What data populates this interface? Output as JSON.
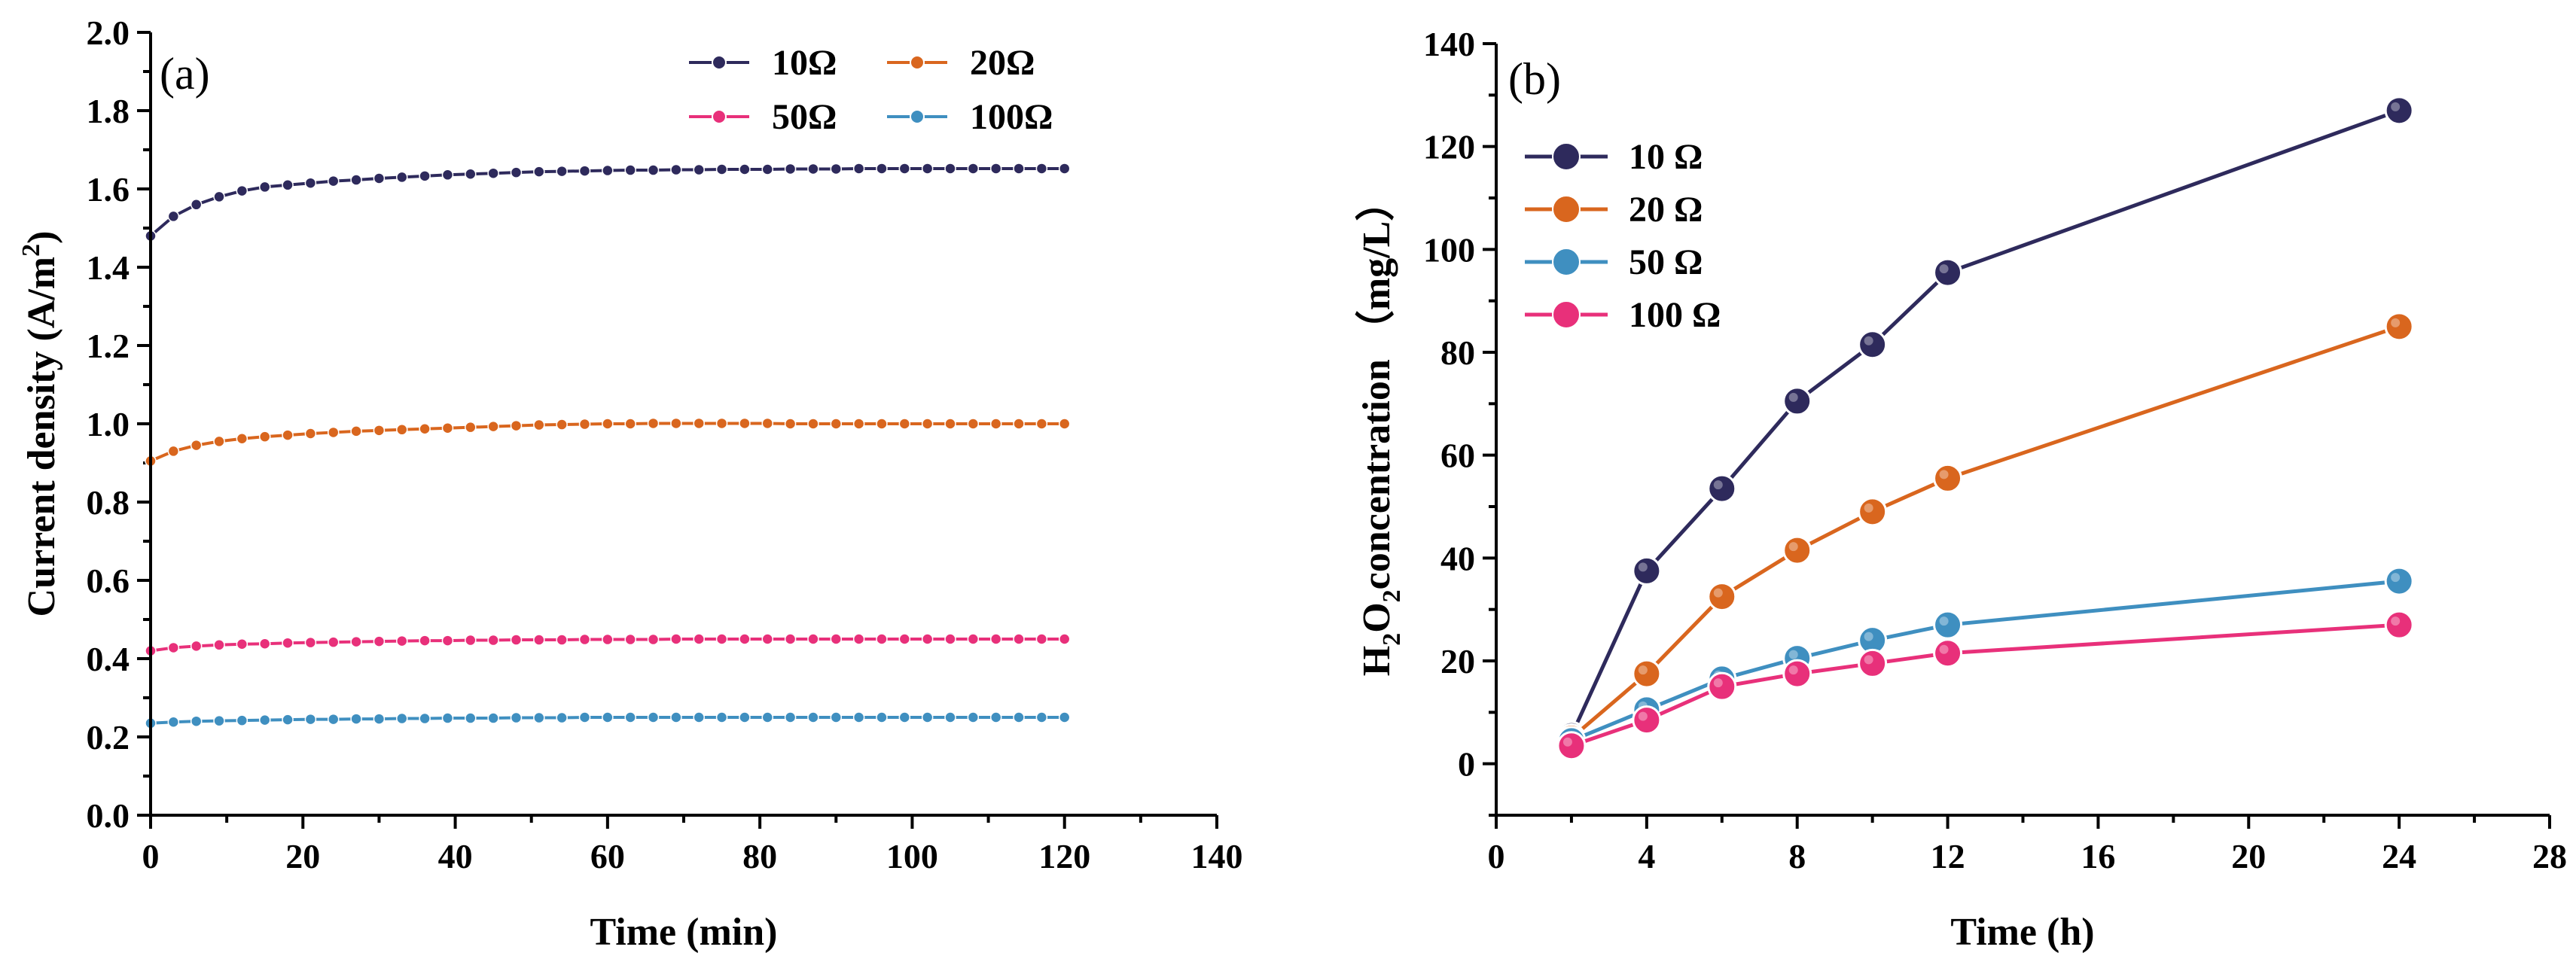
{
  "chart_data": [
    {
      "panel_label": "(a)",
      "type": "line",
      "xlabel": "Time (min)",
      "ylabel_main": "Current density (A/m",
      "ylabel_sup": "2",
      "ylabel_end": ")",
      "xlim": [
        0,
        140
      ],
      "ylim": [
        0.0,
        2.0
      ],
      "xticks": [
        "0",
        "20",
        "40",
        "60",
        "80",
        "100",
        "120",
        "140"
      ],
      "yticks": [
        "0.0",
        "0.2",
        "0.4",
        "0.6",
        "0.8",
        "1.0",
        "1.2",
        "1.4",
        "1.6",
        "1.8",
        "2.0"
      ],
      "legend_position": "top-right",
      "x": [
        0,
        3,
        6,
        9,
        12,
        15,
        18,
        21,
        24,
        27,
        30,
        33,
        36,
        39,
        42,
        45,
        48,
        51,
        54,
        57,
        60,
        63,
        66,
        69,
        72,
        75,
        78,
        81,
        84,
        87,
        90,
        93,
        96,
        99,
        102,
        105,
        108,
        111,
        114,
        117,
        120
      ],
      "series": [
        {
          "name": "10Ω",
          "color": "#2e2a5c",
          "values": [
            1.48,
            1.53,
            1.56,
            1.58,
            1.595,
            1.605,
            1.61,
            1.615,
            1.62,
            1.623,
            1.627,
            1.63,
            1.633,
            1.636,
            1.638,
            1.64,
            1.642,
            1.644,
            1.645,
            1.646,
            1.647,
            1.648,
            1.648,
            1.649,
            1.649,
            1.65,
            1.65,
            1.65,
            1.651,
            1.651,
            1.651,
            1.652,
            1.652,
            1.652,
            1.652,
            1.652,
            1.652,
            1.652,
            1.652,
            1.652,
            1.652
          ]
        },
        {
          "name": "20Ω",
          "color": "#d9661e",
          "values": [
            0.905,
            0.93,
            0.945,
            0.955,
            0.962,
            0.967,
            0.971,
            0.975,
            0.978,
            0.981,
            0.983,
            0.985,
            0.987,
            0.989,
            0.991,
            0.993,
            0.995,
            0.997,
            0.998,
            0.999,
            1.0,
            1.0,
            1.001,
            1.001,
            1.001,
            1.001,
            1.001,
            1.001,
            1.0,
            1.0,
            1.0,
            1.0,
            1.0,
            1.0,
            1.0,
            1.0,
            1.0,
            1.0,
            1.0,
            1.0,
            1.0
          ]
        },
        {
          "name": "50Ω",
          "color": "#e8307a",
          "values": [
            0.42,
            0.428,
            0.432,
            0.435,
            0.437,
            0.438,
            0.44,
            0.441,
            0.442,
            0.443,
            0.444,
            0.445,
            0.446,
            0.446,
            0.447,
            0.447,
            0.448,
            0.448,
            0.448,
            0.449,
            0.449,
            0.449,
            0.449,
            0.45,
            0.45,
            0.45,
            0.45,
            0.45,
            0.45,
            0.45,
            0.45,
            0.45,
            0.45,
            0.45,
            0.45,
            0.45,
            0.45,
            0.45,
            0.45,
            0.45,
            0.45
          ]
        },
        {
          "name": "100Ω",
          "color": "#3f8fc0",
          "values": [
            0.235,
            0.238,
            0.24,
            0.241,
            0.242,
            0.243,
            0.244,
            0.245,
            0.245,
            0.246,
            0.246,
            0.247,
            0.247,
            0.248,
            0.248,
            0.248,
            0.249,
            0.249,
            0.249,
            0.25,
            0.25,
            0.25,
            0.25,
            0.25,
            0.25,
            0.25,
            0.25,
            0.25,
            0.25,
            0.25,
            0.25,
            0.25,
            0.25,
            0.25,
            0.25,
            0.25,
            0.25,
            0.25,
            0.25,
            0.25,
            0.25
          ]
        }
      ]
    },
    {
      "panel_label": "(b)",
      "type": "line",
      "xlabel": "Time (h)",
      "ylabel_h": "H",
      "ylabel_sub1": "2",
      "ylabel_o": "O",
      "ylabel_sub2": "2",
      "ylabel_rest": "concentration （mg/L）",
      "xlim": [
        0,
        28
      ],
      "ylim": [
        -10,
        140
      ],
      "xticks": [
        "0",
        "4",
        "8",
        "12",
        "16",
        "20",
        "24",
        "28"
      ],
      "yticks": [
        "0",
        "20",
        "40",
        "60",
        "80",
        "100",
        "120",
        "140"
      ],
      "legend_position": "top-left",
      "x": [
        2,
        4,
        6,
        8,
        10,
        12,
        24
      ],
      "series": [
        {
          "name": "10 Ω",
          "color": "#2e2a5c",
          "values": [
            5.5,
            37.5,
            53.5,
            70.5,
            81.5,
            95.5,
            127
          ]
        },
        {
          "name": "20 Ω",
          "color": "#d9661e",
          "values": [
            5,
            17.5,
            32.5,
            41.5,
            49,
            55.5,
            85
          ]
        },
        {
          "name": "50 Ω",
          "color": "#3f8fc0",
          "values": [
            4.5,
            10.5,
            16.5,
            20.5,
            24,
            27,
            35.5
          ]
        },
        {
          "name": "100  Ω",
          "color": "#e8307a",
          "values": [
            3.5,
            8.5,
            15,
            17.5,
            19.5,
            21.5,
            27
          ]
        }
      ]
    }
  ]
}
